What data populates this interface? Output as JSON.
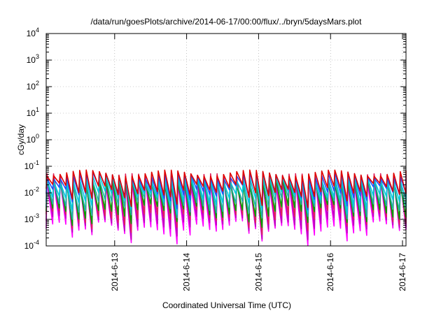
{
  "chart_data": {
    "type": "line",
    "title": "/data/run/goesPlots/archive/2014-06-17/00:00/flux/../bryn/5daysMars.plot",
    "xlabel": "Coordinated Universal Time (UTC)",
    "ylabel": "cGy/day",
    "y_scale": "log",
    "ylim": [
      0.0001,
      10000
    ],
    "y_ticks": [
      {
        "value": 0.0001,
        "base": "10",
        "exp": "-4"
      },
      {
        "value": 0.001,
        "base": "10",
        "exp": "-3"
      },
      {
        "value": 0.01,
        "base": "10",
        "exp": "-2"
      },
      {
        "value": 0.1,
        "base": "10",
        "exp": "-1"
      },
      {
        "value": 1,
        "base": "10",
        "exp": "0"
      },
      {
        "value": 10,
        "base": "10",
        "exp": "1"
      },
      {
        "value": 100,
        "base": "10",
        "exp": "2"
      },
      {
        "value": 1000,
        "base": "10",
        "exp": "3"
      },
      {
        "value": 10000,
        "base": "10",
        "exp": "4"
      }
    ],
    "xlim": [
      "2014-06-12T01:10",
      "2014-06-17T01:10"
    ],
    "x_ticks": [
      "2014-6-13",
      "2014-6-14",
      "2014-6-15",
      "2014-6-16",
      "2014-6-17"
    ],
    "x_tick_dates": [
      "2014-06-13",
      "2014-06-14",
      "2014-06-15",
      "2014-06-16",
      "2014-06-17"
    ],
    "grid": true,
    "legend": "none",
    "cycles_per_day": 11,
    "series": [
      {
        "color": "#ff00ff",
        "peak": 0.026,
        "trough": 0.00045
      },
      {
        "color": "#c000c0",
        "peak": 0.03,
        "trough": 0.0007
      },
      {
        "color": "#e0205a",
        "peak": 0.04,
        "trough": 0.0012
      },
      {
        "color": "#00a000",
        "peak": 0.026,
        "trough": 0.002
      },
      {
        "color": "#20b2aa",
        "peak": 0.028,
        "trough": 0.0035
      },
      {
        "color": "#00c8e0",
        "peak": 0.035,
        "trough": 0.006
      },
      {
        "color": "#2050ff",
        "peak": 0.045,
        "trough": 0.01
      },
      {
        "color": "#e00000",
        "peak": 0.055,
        "trough": 0.012
      }
    ]
  }
}
